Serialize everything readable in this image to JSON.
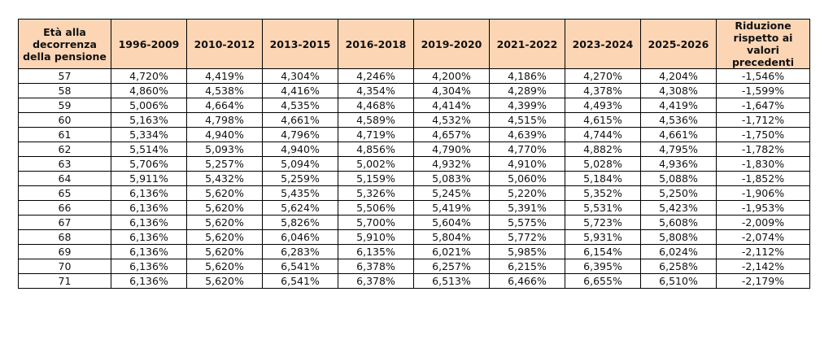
{
  "table": {
    "headers": [
      "Età alla decorrenza della pensione",
      "1996-2009",
      "2010-2012",
      "2013-2015",
      "2016-2018",
      "2019-2020",
      "2021-2022",
      "2023-2024",
      "2025-2026",
      "Riduzione rispetto ai valori precedenti"
    ],
    "rows": [
      [
        "57",
        "4,720%",
        "4,419%",
        "4,304%",
        "4,246%",
        "4,200%",
        "4,186%",
        "4,270%",
        "4,204%",
        "-1,546%"
      ],
      [
        "58",
        "4,860%",
        "4,538%",
        "4,416%",
        "4,354%",
        "4,304%",
        "4,289%",
        "4,378%",
        "4,308%",
        "-1,599%"
      ],
      [
        "59",
        "5,006%",
        "4,664%",
        "4,535%",
        "4,468%",
        "4,414%",
        "4,399%",
        "4,493%",
        "4,419%",
        "-1,647%"
      ],
      [
        "60",
        "5,163%",
        "4,798%",
        "4,661%",
        "4,589%",
        "4,532%",
        "4,515%",
        "4,615%",
        "4,536%",
        "-1,712%"
      ],
      [
        "61",
        "5,334%",
        "4,940%",
        "4,796%",
        "4,719%",
        "4,657%",
        "4,639%",
        "4,744%",
        "4,661%",
        "-1,750%"
      ],
      [
        "62",
        "5,514%",
        "5,093%",
        "4,940%",
        "4,856%",
        "4,790%",
        "4,770%",
        "4,882%",
        "4,795%",
        "-1,782%"
      ],
      [
        "63",
        "5,706%",
        "5,257%",
        "5,094%",
        "5,002%",
        "4,932%",
        "4,910%",
        "5,028%",
        "4,936%",
        "-1,830%"
      ],
      [
        "64",
        "5,911%",
        "5,432%",
        "5,259%",
        "5,159%",
        "5,083%",
        "5,060%",
        "5,184%",
        "5,088%",
        "-1,852%"
      ],
      [
        "65",
        "6,136%",
        "5,620%",
        "5,435%",
        "5,326%",
        "5,245%",
        "5,220%",
        "5,352%",
        "5,250%",
        "-1,906%"
      ],
      [
        "66",
        "6,136%",
        "5,620%",
        "5,624%",
        "5,506%",
        "5,419%",
        "5,391%",
        "5,531%",
        "5,423%",
        "-1,953%"
      ],
      [
        "67",
        "6,136%",
        "5,620%",
        "5,826%",
        "5,700%",
        "5,604%",
        "5,575%",
        "5,723%",
        "5,608%",
        "-2,009%"
      ],
      [
        "68",
        "6,136%",
        "5,620%",
        "6,046%",
        "5,910%",
        "5,804%",
        "5,772%",
        "5,931%",
        "5,808%",
        "-2,074%"
      ],
      [
        "69",
        "6,136%",
        "5,620%",
        "6,283%",
        "6,135%",
        "6,021%",
        "5,985%",
        "6,154%",
        "6,024%",
        "-2,112%"
      ],
      [
        "70",
        "6,136%",
        "5,620%",
        "6,541%",
        "6,378%",
        "6,257%",
        "6,215%",
        "6,395%",
        "6,258%",
        "-2,142%"
      ],
      [
        "71",
        "6,136%",
        "5,620%",
        "6,541%",
        "6,378%",
        "6,513%",
        "6,466%",
        "6,655%",
        "6,510%",
        "-2,179%"
      ]
    ]
  },
  "colors": {
    "header_background": "#fcd5b4",
    "border": "#000000"
  }
}
